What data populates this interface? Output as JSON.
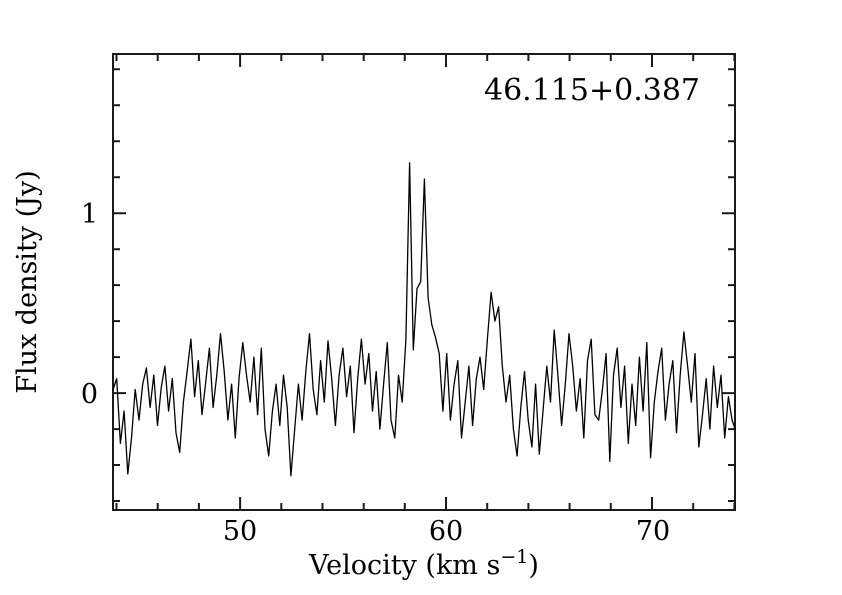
{
  "chart_data": {
    "type": "line",
    "title": "46.115+0.387",
    "xlabel": "Velocity (km s⁻¹)",
    "xlabel_parts": {
      "main": "Velocity (km s",
      "sup": "−1",
      "close": ")"
    },
    "ylabel": "Flux density (Jy)",
    "xlim": [
      43.83,
      74.03
    ],
    "ylim": [
      -0.65,
      1.885
    ],
    "x_major_ticks": [
      50,
      60,
      70
    ],
    "x_tick_labels": [
      "50",
      "60",
      "70"
    ],
    "x_minor_step": 2,
    "y_major_ticks": [
      0,
      1
    ],
    "y_tick_labels": [
      "0",
      "1"
    ],
    "y_minor_step": 0.2,
    "grid": false,
    "legend": "none",
    "line_color": "#000000",
    "frame_color": "#1a1a1a",
    "background_color": "#ffffff",
    "series_name": "flux-density-spectrum",
    "v_start": 43.83,
    "v_step": 0.18,
    "peaks": [
      {
        "velocity": 58.23,
        "flux": 1.28
      },
      {
        "velocity": 58.95,
        "flux": 1.19
      },
      {
        "velocity": 62.19,
        "flux": 0.56
      }
    ],
    "flux": [
      0.02,
      0.08,
      -0.28,
      -0.1,
      -0.45,
      -0.25,
      0.02,
      -0.15,
      0.05,
      0.14,
      -0.08,
      0.1,
      -0.18,
      0.03,
      0.15,
      -0.1,
      0.08,
      -0.22,
      -0.33,
      -0.05,
      0.12,
      0.3,
      -0.02,
      0.18,
      -0.12,
      0.06,
      0.25,
      -0.08,
      0.1,
      0.33,
      0.12,
      -0.15,
      0.05,
      -0.25,
      0.08,
      0.28,
      0.1,
      -0.05,
      0.2,
      -0.12,
      0.25,
      -0.2,
      -0.35,
      -0.1,
      0.05,
      -0.18,
      0.1,
      -0.08,
      -0.46,
      -0.2,
      0.05,
      -0.15,
      0.12,
      0.33,
      0.02,
      -0.12,
      0.18,
      -0.05,
      0.29,
      0.08,
      -0.18,
      0.1,
      0.25,
      -0.02,
      0.15,
      -0.22,
      0.08,
      0.3,
      0.05,
      0.22,
      -0.1,
      0.12,
      -0.2,
      0.05,
      0.28,
      -0.15,
      -0.25,
      0.1,
      -0.05,
      0.3,
      1.28,
      0.24,
      0.58,
      0.62,
      1.19,
      0.53,
      0.38,
      0.31,
      0.22,
      -0.1,
      0.22,
      -0.15,
      0.05,
      0.18,
      -0.25,
      -0.05,
      0.15,
      -0.18,
      0.08,
      0.2,
      0.02,
      0.3,
      0.56,
      0.4,
      0.48,
      0.15,
      -0.05,
      0.1,
      -0.2,
      -0.35,
      -0.08,
      0.12,
      -0.15,
      -0.3,
      0.05,
      -0.34,
      -0.1,
      0.15,
      -0.05,
      0.35,
      0.1,
      -0.18,
      0.05,
      0.33,
      0.15,
      -0.1,
      0.08,
      -0.25,
      0.18,
      0.3,
      -0.12,
      -0.15,
      0.02,
      0.22,
      -0.38,
      0.1,
      0.25,
      -0.08,
      0.15,
      -0.28,
      0.05,
      -0.18,
      0.2,
      -0.1,
      0.28,
      -0.36,
      -0.05,
      0.12,
      0.25,
      -0.15,
      0.05,
      0.18,
      -0.22,
      0.1,
      0.34,
      0.15,
      -0.05,
      0.22,
      -0.3,
      -0.12,
      0.08,
      -0.2,
      0.15,
      -0.08,
      0.1,
      -0.25,
      -0.02,
      -0.15,
      -0.2
    ]
  }
}
